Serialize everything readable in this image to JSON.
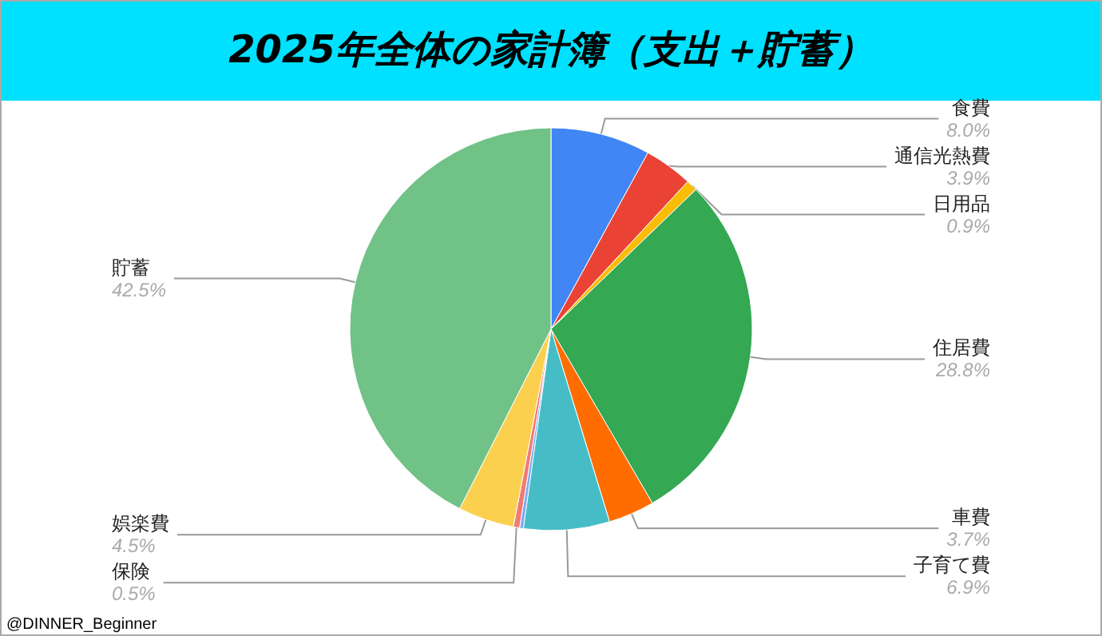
{
  "chart_data": {
    "type": "pie",
    "title": "2025年全体の家計簿（支出＋貯蓄）",
    "categories": [
      "食費",
      "通信光熱費",
      "日用品",
      "住居費",
      "車費",
      "子育て費",
      null,
      "保険",
      "娯楽費",
      "貯蓄"
    ],
    "values": [
      8.0,
      3.9,
      0.9,
      28.8,
      3.7,
      6.9,
      0.3,
      0.5,
      4.5,
      42.5
    ],
    "value_labels": [
      "8.0%",
      "3.9%",
      "0.9%",
      "28.8%",
      "3.7%",
      "6.9%",
      null,
      "0.5%",
      "4.5%",
      "42.5%"
    ],
    "colors": [
      "#4285f4",
      "#ea4335",
      "#fbbc04",
      "#34a853",
      "#ff6d01",
      "#46bdc6",
      "#7baaf7",
      "#f07b72",
      "#fcd04f",
      "#71c287"
    ],
    "legend": false,
    "annotations": [
      "@DINNER_Beginner"
    ]
  }
}
